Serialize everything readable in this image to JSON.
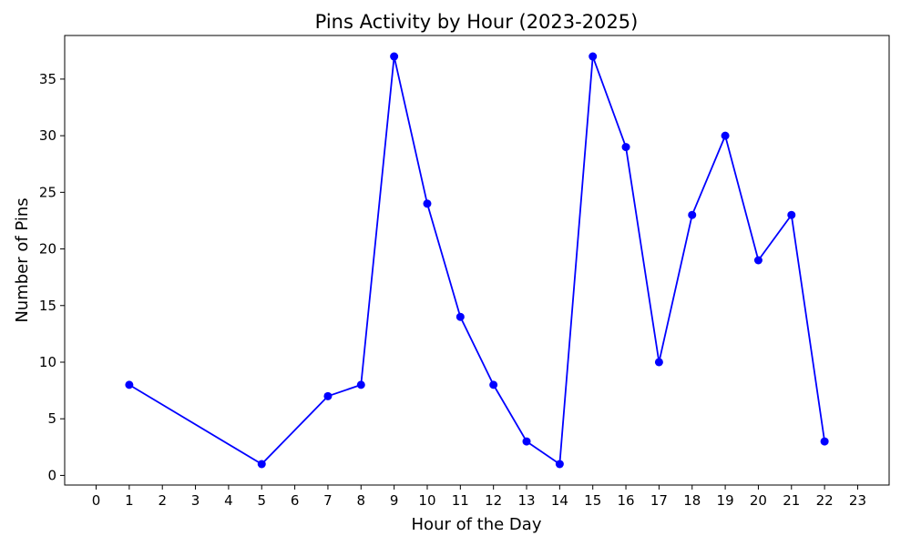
{
  "chart_data": {
    "type": "line",
    "title": "Pins Activity by Hour (2023-2025)",
    "xlabel": "Hour of the Day",
    "ylabel": "Number of Pins",
    "x_ticks": [
      0,
      1,
      2,
      3,
      4,
      5,
      6,
      7,
      8,
      9,
      10,
      11,
      12,
      13,
      14,
      15,
      16,
      17,
      18,
      19,
      20,
      21,
      22,
      23
    ],
    "y_ticks": [
      0,
      5,
      10,
      15,
      20,
      25,
      30,
      35
    ],
    "xlim": [
      0,
      23
    ],
    "ylim": [
      -0.85,
      38.85
    ],
    "grid": false,
    "legend": "none",
    "series": [
      {
        "color": "#0000ff",
        "marker": "circle",
        "x": [
          1,
          5,
          7,
          8,
          9,
          10,
          11,
          12,
          13,
          14,
          15,
          16,
          17,
          18,
          19,
          20,
          21,
          22
        ],
        "y": [
          8,
          1,
          7,
          8,
          37,
          24,
          14,
          8,
          3,
          1,
          37,
          29,
          10,
          23,
          30,
          19,
          23,
          3
        ]
      }
    ]
  }
}
